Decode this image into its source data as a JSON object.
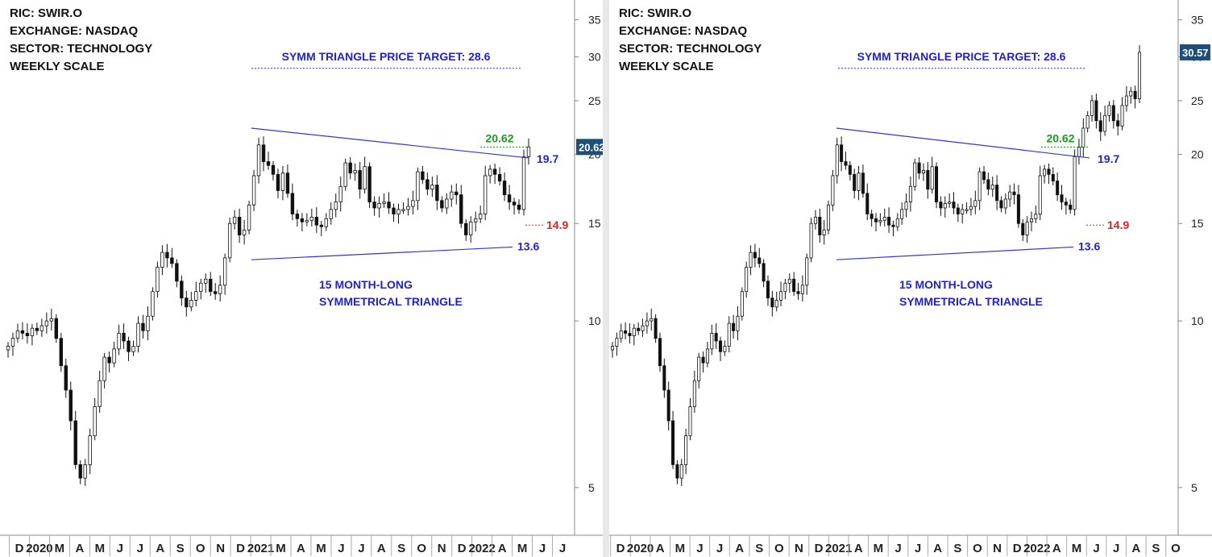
{
  "colors": {
    "bull_body": "#ffffff",
    "bear_body": "#111111",
    "trendline": "#3333dd",
    "target_line": "#3333aa",
    "label_blue": "#2222cc",
    "label_green": "#1a9a1a",
    "label_red": "#e02020",
    "price_tag_bg": "#1f4e79",
    "price_tag_text": "#ffffff"
  },
  "chart_data": [
    {
      "type": "candlestick",
      "title_lines": [
        "RIC: SWIR.O",
        "EXCHANGE: NASDAQ",
        "SECTOR: TECHNOLOGY",
        "WEEKLY SCALE"
      ],
      "y_scale": "log",
      "ylim": [
        4.1,
        37.5
      ],
      "y_ticks": [
        5,
        10,
        15,
        20,
        25,
        30,
        35
      ],
      "x_ticks": [
        "D",
        "2020",
        "M",
        "A",
        "M",
        "J",
        "J",
        "A",
        "S",
        "O",
        "N",
        "D",
        "2021",
        "M",
        "A",
        "M",
        "J",
        "J",
        "A",
        "S",
        "O",
        "N",
        "D",
        "2022",
        "A",
        "M",
        "J",
        "J"
      ],
      "last_price": "20.62",
      "annotations": {
        "target": "SYMM TRIANGLE PRICE TARGET: 28.6",
        "triangle": [
          "15 MONTH-LONG",
          "SYMMETRICAL TRIANGLE"
        ],
        "high": "20.62",
        "upper": "19.7",
        "stop": "14.9",
        "lower": "13.6"
      },
      "upper_line": [
        22.3,
        19.7
      ],
      "lower_line": [
        12.9,
        13.6
      ],
      "target_value": 28.6,
      "series": [
        {
          "values": [
            9.0,
            9.3,
            9.6,
            9.5,
            9.4,
            9.7,
            9.6,
            9.8,
            10.0,
            10.1,
            9.3,
            8.3,
            7.5,
            6.6,
            5.5,
            5.2,
            5.5,
            6.2,
            7.0,
            7.8,
            8.6,
            8.4,
            8.9,
            9.5,
            9.2,
            8.8,
            9.0,
            9.9,
            9.6,
            10.2,
            11.3,
            12.5,
            13.3,
            13.0,
            12.7,
            11.8,
            11.0,
            10.6,
            10.9,
            11.3,
            11.7,
            11.9,
            11.3,
            11.2,
            11.6,
            13.0,
            15.0,
            15.4,
            14.3,
            14.6,
            16.2,
            18.3,
            20.8,
            19.4,
            19.1,
            18.4,
            17.2,
            18.5,
            17.0,
            15.6,
            15.3,
            15.1,
            15.2,
            15.4,
            14.9,
            14.8,
            15.3,
            15.9,
            16.4,
            17.5,
            19.3,
            18.5,
            18.7,
            17.3,
            19.0,
            16.4,
            16.0,
            16.3,
            16.4,
            16.0,
            15.6,
            15.9,
            15.9,
            16.1,
            16.5,
            18.6,
            18.0,
            17.3,
            17.6,
            16.5,
            16.0,
            16.6,
            17.1,
            16.9,
            15.0,
            14.3,
            15.1,
            15.3,
            15.6,
            18.3,
            18.8,
            18.4,
            17.9,
            16.9,
            16.4,
            16.2,
            15.9,
            19.8,
            20.62
          ]
        }
      ]
    },
    {
      "type": "candlestick",
      "title_lines": [
        "RIC: SWIR.O",
        "EXCHANGE: NASDAQ",
        "SECTOR: TECHNOLOGY",
        "WEEKLY SCALE"
      ],
      "y_scale": "log",
      "ylim": [
        4.1,
        37.5
      ],
      "y_ticks": [
        5,
        10,
        15,
        20,
        25,
        30,
        35
      ],
      "x_ticks": [
        "D",
        "2020",
        "A",
        "M",
        "J",
        "J",
        "A",
        "S",
        "O",
        "N",
        "D",
        "2021",
        "A",
        "M",
        "J",
        "J",
        "A",
        "S",
        "O",
        "N",
        "D",
        "2022",
        "A",
        "M",
        "J",
        "J",
        "A",
        "S",
        "O"
      ],
      "last_price": "30.57",
      "annotations": {
        "target": "SYMM TRIANGLE PRICE TARGET: 28.6",
        "triangle": [
          "15 MONTH-LONG",
          "SYMMETRICAL TRIANGLE"
        ],
        "high": "20.62",
        "upper": "19.7",
        "stop": "14.9",
        "lower": "13.6"
      },
      "upper_line": [
        22.3,
        19.7
      ],
      "lower_line": [
        12.9,
        13.6
      ],
      "target_value": 28.6,
      "series": [
        {
          "values": [
            9.0,
            9.3,
            9.6,
            9.5,
            9.4,
            9.7,
            9.6,
            9.8,
            10.0,
            10.1,
            9.3,
            8.3,
            7.5,
            6.6,
            5.5,
            5.2,
            5.5,
            6.2,
            7.0,
            7.8,
            8.6,
            8.4,
            8.9,
            9.5,
            9.2,
            8.8,
            9.0,
            9.9,
            9.6,
            10.2,
            11.3,
            12.5,
            13.3,
            13.0,
            12.7,
            11.8,
            11.0,
            10.6,
            10.9,
            11.3,
            11.7,
            11.9,
            11.3,
            11.2,
            11.6,
            13.0,
            15.0,
            15.4,
            14.3,
            14.6,
            16.2,
            18.3,
            20.8,
            19.4,
            19.1,
            18.4,
            17.2,
            18.5,
            17.0,
            15.6,
            15.3,
            15.1,
            15.2,
            15.4,
            14.9,
            14.8,
            15.3,
            15.9,
            16.4,
            17.5,
            19.3,
            18.5,
            18.7,
            17.3,
            19.0,
            16.4,
            16.0,
            16.3,
            16.4,
            16.0,
            15.6,
            15.9,
            15.9,
            16.1,
            16.5,
            18.6,
            18.0,
            17.3,
            17.6,
            16.5,
            16.0,
            16.6,
            17.1,
            16.9,
            15.0,
            14.3,
            15.1,
            15.3,
            15.6,
            18.3,
            18.8,
            18.4,
            17.9,
            16.9,
            16.4,
            16.2,
            15.9,
            19.8,
            20.6,
            22.3,
            23.5,
            25.0,
            23.0,
            22.0,
            23.5,
            24.5,
            23.0,
            22.5,
            24.5,
            25.5,
            26.0,
            25.2,
            30.57
          ]
        }
      ]
    }
  ]
}
